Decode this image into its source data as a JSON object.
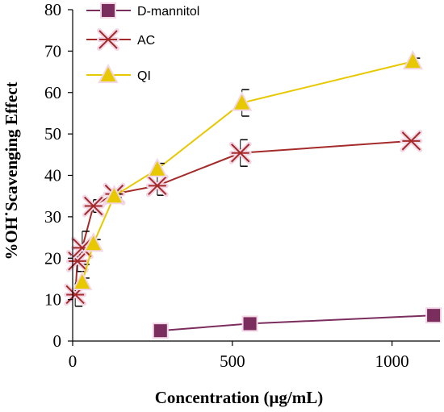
{
  "chart_data": {
    "type": "line",
    "title": "",
    "xlabel": "Concentration (μg/mL)",
    "ylabel": "%OH˙Scavenging Effect",
    "xlim": [
      0,
      1150
    ],
    "ylim": [
      0,
      80
    ],
    "x_ticks": [
      0,
      500,
      1000
    ],
    "y_ticks": [
      0,
      10,
      20,
      30,
      40,
      50,
      60,
      70,
      80
    ],
    "grid": false,
    "legend_position": "top-left",
    "series": [
      {
        "name": "D-mannitol",
        "color": "#7B2D5E",
        "marker": "square",
        "x": [
          275,
          555,
          1130
        ],
        "y": [
          2.5,
          4.2,
          6.2
        ],
        "err": [
          0.4,
          0.5,
          1.7
        ]
      },
      {
        "name": "AC",
        "color": "#A52A2A",
        "marker": "asterisk",
        "x": [
          8,
          15,
          30,
          65,
          130,
          265,
          525,
          1060
        ],
        "y": [
          11.2,
          19.3,
          22.5,
          32.6,
          35.5,
          37.5,
          45.4,
          48.3
        ],
        "err": [
          2.8,
          2.5,
          4.0,
          1.5,
          0.8,
          2.3,
          3.2,
          0.4
        ]
      },
      {
        "name": "QI",
        "color": "#E8C800",
        "marker": "triangle",
        "x": [
          30,
          65,
          130,
          265,
          530,
          1065
        ],
        "y": [
          14.2,
          23.5,
          35.0,
          41.5,
          57.5,
          67.5
        ],
        "err": [
          1.0,
          1.0,
          0.5,
          1.4,
          3.2,
          0.8
        ]
      }
    ]
  }
}
